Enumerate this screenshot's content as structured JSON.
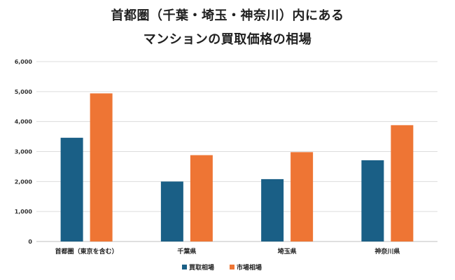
{
  "chart_data": {
    "type": "bar",
    "title_lines": [
      "首都圏（千葉・埼玉・神奈川）内にある",
      "マンションの買取価格の相場"
    ],
    "categories": [
      "首都圏（東京を含む）",
      "千葉県",
      "埼玉県",
      "神奈川県"
    ],
    "series": [
      {
        "name": "買取相場",
        "values": [
          3460,
          2000,
          2080,
          2710
        ],
        "color": "#1a5f86"
      },
      {
        "name": "市場相場",
        "values": [
          4940,
          2880,
          2980,
          3880
        ],
        "color": "#ee7534"
      }
    ],
    "ylim": [
      0,
      6000
    ],
    "yticks": [
      "0",
      "1,000",
      "2,000",
      "3,000",
      "4,000",
      "5,000",
      "6,000"
    ],
    "grid": true,
    "legend": "bottom",
    "xlabel": "",
    "ylabel": ""
  }
}
